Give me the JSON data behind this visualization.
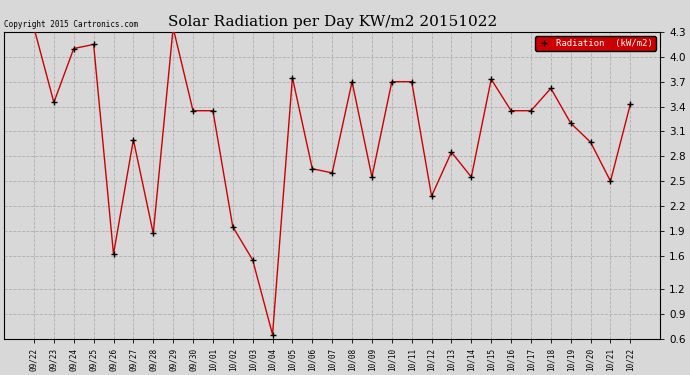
{
  "title": "Solar Radiation per Day KW/m2 20151022",
  "copyright": "Copyright 2015 Cartronics.com",
  "legend_label": "Radiation  (kW/m2)",
  "x_labels": [
    "09/22",
    "09/23",
    "09/24",
    "09/25",
    "09/26",
    "09/27",
    "09/28",
    "09/29",
    "09/30",
    "10/01",
    "10/02",
    "10/03",
    "10/04",
    "10/05",
    "10/06",
    "10/07",
    "10/08",
    "10/09",
    "10/10",
    "10/11",
    "10/12",
    "10/13",
    "10/14",
    "10/15",
    "10/16",
    "10/17",
    "10/18",
    "10/19",
    "10/20",
    "10/21",
    "10/22"
  ],
  "y_values": [
    4.35,
    3.45,
    4.1,
    4.15,
    1.62,
    3.0,
    1.87,
    4.35,
    3.35,
    3.35,
    1.95,
    1.55,
    0.65,
    3.75,
    2.65,
    2.6,
    3.7,
    2.55,
    3.7,
    3.7,
    2.32,
    2.85,
    2.55,
    3.73,
    3.35,
    3.35,
    3.62,
    3.2,
    2.97,
    2.5,
    3.43
  ],
  "ylim": [
    0.6,
    4.3
  ],
  "yticks": [
    0.6,
    0.9,
    1.2,
    1.6,
    1.9,
    2.2,
    2.5,
    2.8,
    3.1,
    3.4,
    3.7,
    4.0,
    4.3
  ],
  "line_color": "#cc0000",
  "marker_color": "#000000",
  "background_color": "#d8d8d8",
  "plot_bg_color": "#d8d8d8",
  "grid_color": "#aaaaaa",
  "title_fontsize": 11,
  "legend_bg_color": "#cc0000",
  "legend_text_color": "#ffffff"
}
